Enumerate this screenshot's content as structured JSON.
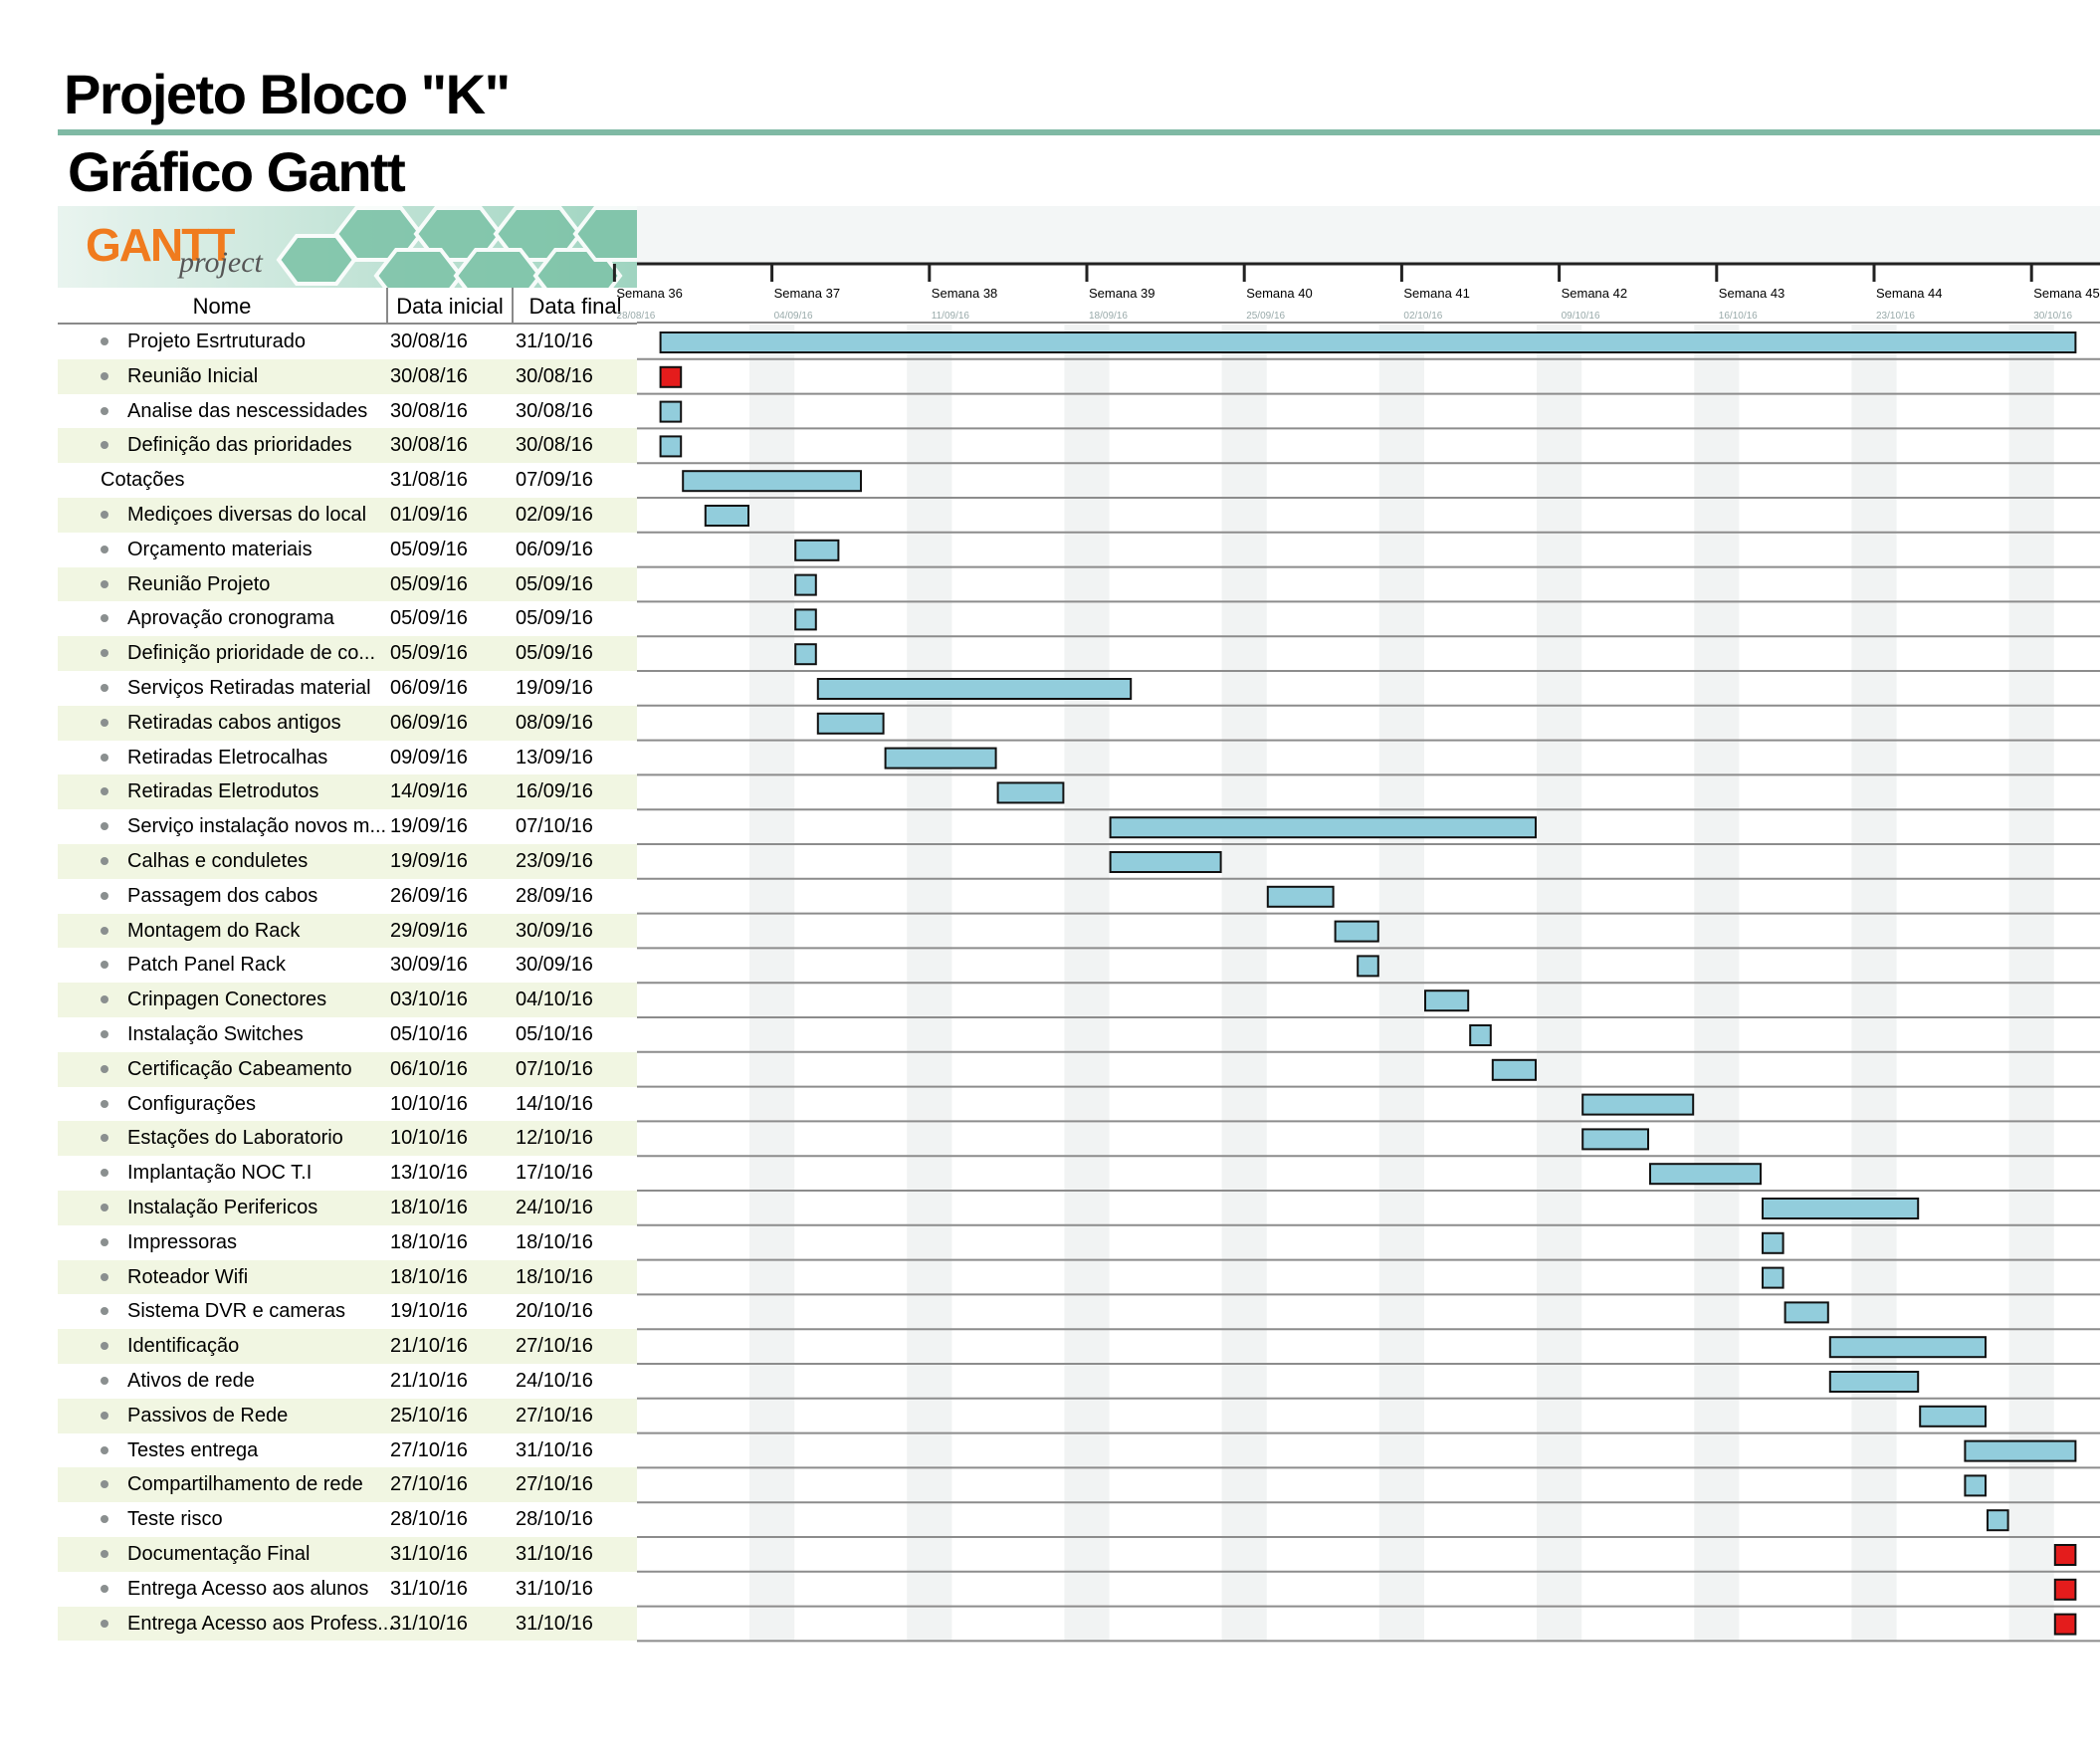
{
  "header": {
    "title": "Projeto Bloco \"K\"",
    "subtitle": "Gráfico Gantt"
  },
  "logo": {
    "brand": "GANTT",
    "sub": "project"
  },
  "table": {
    "columns": [
      "Nome",
      "Data inicial",
      "Data final"
    ]
  },
  "chart_data": {
    "type": "gantt",
    "year_label": "2016",
    "weeks": [
      {
        "label": "Semana 36",
        "date": "28/08/16"
      },
      {
        "label": "Semana 37",
        "date": "04/09/16"
      },
      {
        "label": "Semana 38",
        "date": "11/09/16"
      },
      {
        "label": "Semana 39",
        "date": "18/09/16"
      },
      {
        "label": "Semana 40",
        "date": "25/09/16"
      },
      {
        "label": "Semana 41",
        "date": "02/10/16"
      },
      {
        "label": "Semana 42",
        "date": "09/10/16"
      },
      {
        "label": "Semana 43",
        "date": "16/10/16"
      },
      {
        "label": "Semana 44",
        "date": "23/10/16"
      },
      {
        "label": "Semana 45",
        "date": "30/10/16"
      }
    ],
    "colors": {
      "task": "#92cddc",
      "milestone": "#e41c1c",
      "weekend": "#f1f3f3",
      "alt_row": "#f1f6e2"
    },
    "tasks": [
      {
        "name": "Projeto Esrtruturado",
        "start": "30/08/16",
        "end": "31/10/16",
        "bullet": true,
        "milestone": false
      },
      {
        "name": "Reunião Inicial",
        "start": "30/08/16",
        "end": "30/08/16",
        "bullet": true,
        "milestone": true
      },
      {
        "name": "Analise das nescessidades",
        "start": "30/08/16",
        "end": "30/08/16",
        "bullet": true,
        "milestone": false
      },
      {
        "name": "Definição das prioridades",
        "start": "30/08/16",
        "end": "30/08/16",
        "bullet": true,
        "milestone": false
      },
      {
        "name": "Cotações",
        "start": "31/08/16",
        "end": "07/09/16",
        "bullet": false,
        "milestone": false
      },
      {
        "name": "Mediçoes diversas do local",
        "start": "01/09/16",
        "end": "02/09/16",
        "bullet": true,
        "milestone": false
      },
      {
        "name": "Orçamento materiais",
        "start": "05/09/16",
        "end": "06/09/16",
        "bullet": true,
        "milestone": false
      },
      {
        "name": "Reunião Projeto",
        "start": "05/09/16",
        "end": "05/09/16",
        "bullet": true,
        "milestone": false
      },
      {
        "name": "Aprovação cronograma",
        "start": "05/09/16",
        "end": "05/09/16",
        "bullet": true,
        "milestone": false
      },
      {
        "name": "Definição prioridade de co...",
        "start": "05/09/16",
        "end": "05/09/16",
        "bullet": true,
        "milestone": false
      },
      {
        "name": "Serviços Retiradas material",
        "start": "06/09/16",
        "end": "19/09/16",
        "bullet": true,
        "milestone": false
      },
      {
        "name": "Retiradas cabos antigos",
        "start": "06/09/16",
        "end": "08/09/16",
        "bullet": true,
        "milestone": false
      },
      {
        "name": "Retiradas Eletrocalhas",
        "start": "09/09/16",
        "end": "13/09/16",
        "bullet": true,
        "milestone": false
      },
      {
        "name": "Retiradas Eletrodutos",
        "start": "14/09/16",
        "end": "16/09/16",
        "bullet": true,
        "milestone": false
      },
      {
        "name": "Serviço instalação novos m...",
        "start": "19/09/16",
        "end": "07/10/16",
        "bullet": true,
        "milestone": false
      },
      {
        "name": "Calhas e conduletes",
        "start": "19/09/16",
        "end": "23/09/16",
        "bullet": true,
        "milestone": false
      },
      {
        "name": "Passagem dos cabos",
        "start": "26/09/16",
        "end": "28/09/16",
        "bullet": true,
        "milestone": false
      },
      {
        "name": "Montagem do Rack",
        "start": "29/09/16",
        "end": "30/09/16",
        "bullet": true,
        "milestone": false
      },
      {
        "name": "Patch Panel Rack",
        "start": "30/09/16",
        "end": "30/09/16",
        "bullet": true,
        "milestone": false
      },
      {
        "name": "Crinpagen Conectores",
        "start": "03/10/16",
        "end": "04/10/16",
        "bullet": true,
        "milestone": false
      },
      {
        "name": "Instalação Switches",
        "start": "05/10/16",
        "end": "05/10/16",
        "bullet": true,
        "milestone": false
      },
      {
        "name": "Certificação Cabeamento",
        "start": "06/10/16",
        "end": "07/10/16",
        "bullet": true,
        "milestone": false
      },
      {
        "name": "Configurações",
        "start": "10/10/16",
        "end": "14/10/16",
        "bullet": true,
        "milestone": false
      },
      {
        "name": "Estações do Laboratorio",
        "start": "10/10/16",
        "end": "12/10/16",
        "bullet": true,
        "milestone": false
      },
      {
        "name": "Implantação NOC T.I",
        "start": "13/10/16",
        "end": "17/10/16",
        "bullet": true,
        "milestone": false
      },
      {
        "name": "Instalação Perifericos",
        "start": "18/10/16",
        "end": "24/10/16",
        "bullet": true,
        "milestone": false
      },
      {
        "name": "Impressoras",
        "start": "18/10/16",
        "end": "18/10/16",
        "bullet": true,
        "milestone": false
      },
      {
        "name": "Roteador Wifi",
        "start": "18/10/16",
        "end": "18/10/16",
        "bullet": true,
        "milestone": false
      },
      {
        "name": "Sistema DVR e cameras",
        "start": "19/10/16",
        "end": "20/10/16",
        "bullet": true,
        "milestone": false
      },
      {
        "name": "Identificação",
        "start": "21/10/16",
        "end": "27/10/16",
        "bullet": true,
        "milestone": false
      },
      {
        "name": "Ativos de rede",
        "start": "21/10/16",
        "end": "24/10/16",
        "bullet": true,
        "milestone": false
      },
      {
        "name": "Passivos de Rede",
        "start": "25/10/16",
        "end": "27/10/16",
        "bullet": true,
        "milestone": false
      },
      {
        "name": "Testes entrega",
        "start": "27/10/16",
        "end": "31/10/16",
        "bullet": true,
        "milestone": false
      },
      {
        "name": "Compartilhamento de rede",
        "start": "27/10/16",
        "end": "27/10/16",
        "bullet": true,
        "milestone": false
      },
      {
        "name": "Teste risco",
        "start": "28/10/16",
        "end": "28/10/16",
        "bullet": true,
        "milestone": false
      },
      {
        "name": "Documentação Final",
        "start": "31/10/16",
        "end": "31/10/16",
        "bullet": true,
        "milestone": true
      },
      {
        "name": "Entrega Acesso aos alunos",
        "start": "31/10/16",
        "end": "31/10/16",
        "bullet": true,
        "milestone": true
      },
      {
        "name": "Entrega Acesso aos Profess...",
        "start": "31/10/16",
        "end": "31/10/16",
        "bullet": true,
        "milestone": true
      }
    ]
  }
}
